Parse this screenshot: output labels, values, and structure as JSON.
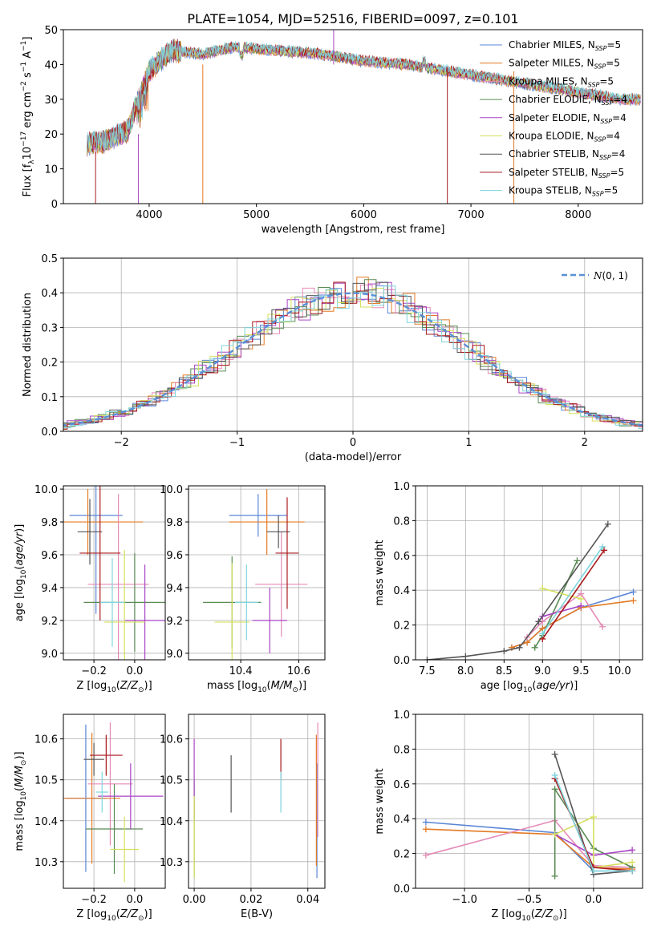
{
  "figure_title": "PLATE=1054, MJD=52516, FIBERID=0097, z=0.101",
  "colors": [
    "#5a86d6",
    "#e47a24",
    "#e58ab7",
    "#5b8b55",
    "#a844c4",
    "#d5e05e",
    "#555555",
    "#a9191c",
    "#7fd4dd"
  ],
  "chart_data": [
    {
      "id": "spectrum",
      "type": "line",
      "xlabel": "wavelength [Angstrom, rest frame]",
      "ylabel": "Flux [f",
      "xlim": [
        3200,
        8600
      ],
      "ylim": [
        0,
        50
      ],
      "xticks": [
        4000,
        5000,
        6000,
        7000,
        8000
      ],
      "yticks": [
        0,
        10,
        20,
        30,
        40,
        50
      ],
      "continuum": {
        "x": [
          3400,
          3600,
          3800,
          3900,
          4000,
          4200,
          4500,
          4800,
          5200,
          5600,
          6000,
          6400,
          6800,
          7200,
          7600,
          8000,
          8400
        ],
        "y": [
          17,
          18,
          21,
          30,
          38,
          44,
          43,
          45,
          44,
          43,
          41,
          40,
          38,
          36,
          34,
          32,
          30
        ]
      },
      "spikes": [
        [
          4500,
          0,
          40
        ],
        [
          5720,
          40,
          55
        ],
        [
          6780,
          0,
          38
        ],
        [
          7400,
          0,
          38
        ],
        [
          3900,
          0,
          20
        ],
        [
          3500,
          0,
          15
        ]
      ],
      "legend_position": "upper-right",
      "series": [
        {
          "name": "Chabrier MILES, N",
          "sub": "SSP",
          "suffix": "=5"
        },
        {
          "name": "Salpeter MILES, N",
          "sub": "SSP",
          "suffix": "=5"
        },
        {
          "name": "Kroupa MILES, N",
          "sub": "SSP",
          "suffix": "=5"
        },
        {
          "name": "Chabrier ELODIE, N",
          "sub": "SSP",
          "suffix": "=4"
        },
        {
          "name": "Salpeter ELODIE, N",
          "sub": "SSP",
          "suffix": "=4"
        },
        {
          "name": "Kroupa ELODIE, N",
          "sub": "SSP",
          "suffix": "=4"
        },
        {
          "name": "Chabrier STELIB, N",
          "sub": "SSP",
          "suffix": "=4"
        },
        {
          "name": "Salpeter STELIB, N",
          "sub": "SSP",
          "suffix": "=5"
        },
        {
          "name": "Kroupa STELIB, N",
          "sub": "SSP",
          "suffix": "=5"
        }
      ]
    },
    {
      "id": "residuals",
      "type": "histogram",
      "xlabel": "(data-model)/error",
      "ylabel": "Normed distribution",
      "xlim": [
        -2.5,
        2.5
      ],
      "ylim": [
        0,
        0.5
      ],
      "xticks": [
        -2,
        -1,
        0,
        1,
        2
      ],
      "yticks": [
        0.0,
        0.1,
        0.2,
        0.3,
        0.4,
        0.5
      ],
      "bin_width": 0.1,
      "legend_position": "upper-right",
      "reference_curve": {
        "name": "N(0, 1)",
        "mean": 0,
        "sigma": 1
      }
    },
    {
      "id": "age_vs_Z",
      "type": "scatter",
      "xlabel": "Z [log10(Z/Z⊙)]",
      "ylabel": "age  [log10(age/yr)]",
      "xlim": [
        -0.35,
        0.15
      ],
      "ylim": [
        8.96,
        10.02
      ],
      "xticks": [
        -0.2,
        0.0
      ],
      "yticks": [
        9.0,
        9.2,
        9.4,
        9.6,
        9.8,
        10.0
      ],
      "points": [
        {
          "x": -0.19,
          "y": 9.84,
          "xerr": 0.13,
          "yerr": 0.6,
          "color": 0
        },
        {
          "x": -0.23,
          "y": 9.8,
          "xerr": 0.27,
          "yerr": 0.2,
          "color": 1
        },
        {
          "x": -0.08,
          "y": 9.42,
          "xerr": 0.15,
          "yerr": 0.55,
          "color": 2
        },
        {
          "x": 0.0,
          "y": 9.31,
          "xerr": 0.25,
          "yerr": 0.3,
          "color": 3
        },
        {
          "x": 0.05,
          "y": 9.2,
          "xerr": 0.1,
          "yerr": 0.34,
          "color": 4
        },
        {
          "x": -0.05,
          "y": 9.19,
          "xerr": 0.1,
          "yerr": 0.44,
          "color": 5
        },
        {
          "x": -0.22,
          "y": 9.74,
          "xerr": 0.06,
          "yerr": 0.2,
          "color": 6
        },
        {
          "x": -0.17,
          "y": 9.61,
          "xerr": 0.1,
          "yerr": 0.41,
          "color": 7
        },
        {
          "x": -0.11,
          "y": 9.31,
          "xerr": 0.06,
          "yerr": 0.27,
          "color": 8
        }
      ]
    },
    {
      "id": "age_vs_mass",
      "type": "scatter",
      "xlabel": "mass [log10(M/M⊙)]",
      "ylabel": "",
      "xlim": [
        10.22,
        10.69
      ],
      "ylim": [
        8.96,
        10.02
      ],
      "xticks": [
        10.4,
        10.6
      ],
      "yticks": [
        9.0,
        9.2,
        9.4,
        9.6,
        9.8,
        10.0
      ],
      "points": [
        {
          "x": 10.46,
          "y": 9.84,
          "xerr": 0.1,
          "yerr": 0.13,
          "color": 0
        },
        {
          "x": 10.49,
          "y": 9.8,
          "xerr": 0.13,
          "yerr": 0.2,
          "color": 1
        },
        {
          "x": 10.54,
          "y": 9.42,
          "xerr": 0.09,
          "yerr": 0.32,
          "color": 2
        },
        {
          "x": 10.37,
          "y": 9.31,
          "xerr": 0.1,
          "yerr": 0.28,
          "color": 3
        },
        {
          "x": 10.5,
          "y": 9.2,
          "xerr": 0.06,
          "yerr": 0.2,
          "color": 4
        },
        {
          "x": 10.37,
          "y": 9.19,
          "xerr": 0.06,
          "yerr": 0.36,
          "color": 5
        },
        {
          "x": 10.53,
          "y": 9.74,
          "xerr": 0.04,
          "yerr": 0.1,
          "color": 6
        },
        {
          "x": 10.56,
          "y": 9.61,
          "xerr": 0.04,
          "yerr": 0.34,
          "color": 7
        },
        {
          "x": 10.42,
          "y": 9.31,
          "xerr": 0.04,
          "yerr": 0.23,
          "color": 8
        }
      ]
    },
    {
      "id": "weight_vs_age",
      "type": "line",
      "xlabel": "age  [log10(age/yr)]",
      "ylabel": "mass weight",
      "xlim": [
        7.35,
        10.3
      ],
      "ylim": [
        0,
        1
      ],
      "xticks": [
        7.5,
        8.0,
        8.5,
        9.0,
        9.5,
        10.0
      ],
      "yticks": [
        0.0,
        0.2,
        0.4,
        0.6,
        0.8,
        1.0
      ],
      "series": [
        {
          "color": 0,
          "x": [
            8.6,
            8.8,
            9.0,
            9.5,
            10.18
          ],
          "y": [
            0.07,
            0.1,
            0.18,
            0.3,
            0.39
          ]
        },
        {
          "color": 1,
          "x": [
            8.6,
            8.8,
            9.0,
            9.5,
            10.18
          ],
          "y": [
            0.07,
            0.1,
            0.18,
            0.3,
            0.34
          ]
        },
        {
          "color": 2,
          "x": [
            8.8,
            9.0,
            9.5,
            9.78
          ],
          "y": [
            0.13,
            0.22,
            0.38,
            0.19
          ]
        },
        {
          "color": 3,
          "x": [
            8.9,
            9.0,
            9.45
          ],
          "y": [
            0.07,
            0.14,
            0.57
          ]
        },
        {
          "color": 4,
          "x": [
            8.95,
            9.0,
            9.5
          ],
          "y": [
            0.22,
            0.25,
            0.31
          ]
        },
        {
          "color": 5,
          "x": [
            9.0,
            9.5
          ],
          "y": [
            0.41,
            0.35
          ]
        },
        {
          "color": 6,
          "x": [
            7.5,
            8.0,
            8.5,
            8.7,
            8.95,
            9.85
          ],
          "y": [
            0.0,
            0.02,
            0.05,
            0.07,
            0.22,
            0.78
          ]
        },
        {
          "color": 7,
          "x": [
            9.0,
            9.8
          ],
          "y": [
            0.12,
            0.63
          ]
        },
        {
          "color": 8,
          "x": [
            9.0,
            9.78
          ],
          "y": [
            0.15,
            0.65
          ]
        }
      ]
    },
    {
      "id": "mass_vs_Z",
      "type": "scatter",
      "xlabel": "Z [log10(Z/Z⊙)]",
      "ylabel": "mass [log10(M/M⊙)]",
      "xlim": [
        -0.35,
        0.15
      ],
      "ylim": [
        10.235,
        10.66
      ],
      "xticks": [
        -0.2,
        0.0
      ],
      "yticks": [
        10.3,
        10.4,
        10.5,
        10.6
      ],
      "points": [
        {
          "x": -0.24,
          "y": 10.455,
          "xerr": 0.1,
          "yerr": 0.18,
          "color": 0
        },
        {
          "x": -0.21,
          "y": 10.455,
          "xerr": 0.14,
          "yerr": 0.16,
          "color": 1
        },
        {
          "x": -0.12,
          "y": 10.49,
          "xerr": 0.11,
          "yerr": 0.15,
          "color": 2
        },
        {
          "x": -0.1,
          "y": 10.38,
          "xerr": 0.14,
          "yerr": 0.11,
          "color": 3
        },
        {
          "x": -0.02,
          "y": 10.46,
          "xerr": 0.16,
          "yerr": 0.08,
          "color": 4
        },
        {
          "x": -0.05,
          "y": 10.33,
          "xerr": 0.07,
          "yerr": 0.08,
          "color": 5
        },
        {
          "x": -0.2,
          "y": 10.55,
          "xerr": 0.05,
          "yerr": 0.04,
          "color": 6
        },
        {
          "x": -0.14,
          "y": 10.56,
          "xerr": 0.08,
          "yerr": 0.05,
          "color": 7
        },
        {
          "x": -0.16,
          "y": 10.47,
          "xerr": 0.03,
          "yerr": 0.05,
          "color": 8
        }
      ]
    },
    {
      "id": "mass_vs_EBV",
      "type": "scatter",
      "xlabel": "E(B-V)",
      "ylabel": "",
      "xlim": [
        -0.002,
        0.046
      ],
      "ylim": [
        10.235,
        10.66
      ],
      "xticks": [
        0.0,
        0.02,
        0.04
      ],
      "yticks": [
        10.3,
        10.4,
        10.5,
        10.6
      ],
      "points": [
        {
          "x": 0.0432,
          "y": 10.4,
          "xerr": 0,
          "yerr": 0.14,
          "color": 0
        },
        {
          "x": 0.043,
          "y": 10.45,
          "xerr": 0,
          "yerr": 0.16,
          "color": 1
        },
        {
          "x": 0.0435,
          "y": 10.5,
          "xerr": 0,
          "yerr": 0.14,
          "color": 2
        },
        {
          "x": 0.0,
          "y": 10.38,
          "xerr": 0,
          "yerr": 0.12,
          "color": 3
        },
        {
          "x": 0.0,
          "y": 10.5,
          "xerr": 0,
          "yerr": 0.1,
          "color": 4
        },
        {
          "x": 0.0,
          "y": 10.36,
          "xerr": 0,
          "yerr": 0.1,
          "color": 5
        },
        {
          "x": 0.013,
          "y": 10.49,
          "xerr": 0,
          "yerr": 0.07,
          "color": 6
        },
        {
          "x": 0.0305,
          "y": 10.55,
          "xerr": 0,
          "yerr": 0.05,
          "color": 7
        },
        {
          "x": 0.0305,
          "y": 10.47,
          "xerr": 0,
          "yerr": 0.05,
          "color": 8
        }
      ]
    },
    {
      "id": "weight_vs_Z",
      "type": "line",
      "xlabel": "Z [log10(Z/Z⊙)]",
      "ylabel": "mass weight",
      "xlim": [
        -1.38,
        0.38
      ],
      "ylim": [
        0,
        1
      ],
      "xticks": [
        -1.0,
        -0.5,
        0.0
      ],
      "yticks": [
        0.0,
        0.2,
        0.4,
        0.6,
        0.8,
        1.0
      ],
      "series": [
        {
          "color": 0,
          "x": [
            -1.3,
            -0.3,
            0.0,
            0.3
          ],
          "y": [
            0.38,
            0.32,
            0.1,
            0.1
          ]
        },
        {
          "color": 1,
          "x": [
            -1.3,
            -0.3,
            0.0,
            0.3
          ],
          "y": [
            0.34,
            0.31,
            0.12,
            0.11
          ]
        },
        {
          "color": 2,
          "x": [
            -1.3,
            -0.3,
            0.0,
            0.3
          ],
          "y": [
            0.19,
            0.39,
            0.13,
            0.12
          ]
        },
        {
          "color": 3,
          "x": [
            -0.3,
            -0.3,
            0.0,
            0.3
          ],
          "y": [
            0.07,
            0.57,
            0.23,
            0.12
          ]
        },
        {
          "color": 4,
          "x": [
            -0.3,
            0.0,
            0.3
          ],
          "y": [
            0.31,
            0.19,
            0.22
          ]
        },
        {
          "color": 5,
          "x": [
            -0.3,
            0.0,
            0.0,
            0.3
          ],
          "y": [
            0.31,
            0.41,
            0.12,
            0.15
          ]
        },
        {
          "color": 6,
          "x": [
            -0.3,
            0.0,
            0.3
          ],
          "y": [
            0.77,
            0.08,
            0.1
          ]
        },
        {
          "color": 7,
          "x": [
            -0.3,
            0.0,
            0.3
          ],
          "y": [
            0.63,
            0.12,
            0.1
          ]
        },
        {
          "color": 8,
          "x": [
            -0.3,
            0.0,
            0.3
          ],
          "y": [
            0.65,
            0.1,
            0.1
          ]
        }
      ]
    }
  ]
}
